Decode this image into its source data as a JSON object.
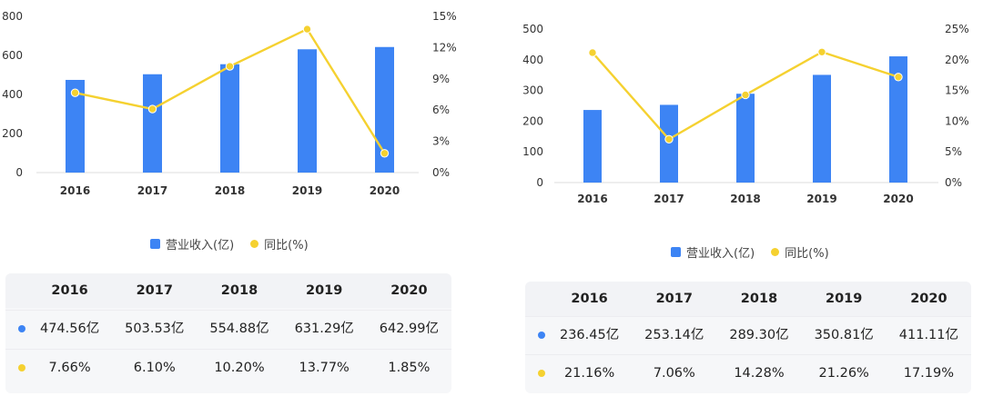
{
  "colors": {
    "bar": "#3d84f4",
    "line": "#f5d130",
    "grid": "#e6e6e6"
  },
  "charts": [
    {
      "legend": {
        "bar_label": "营业收入(亿)",
        "line_label": "同比(%)"
      },
      "table": {
        "years": [
          "2016",
          "2017",
          "2018",
          "2019",
          "2020"
        ],
        "revenue": [
          "474.56亿",
          "503.53亿",
          "554.88亿",
          "631.29亿",
          "642.99亿"
        ],
        "yoy": [
          "7.66%",
          "6.10%",
          "10.20%",
          "13.77%",
          "1.85%"
        ]
      }
    },
    {
      "legend": {
        "bar_label": "营业收入(亿)",
        "line_label": "同比(%)"
      },
      "table": {
        "years": [
          "2016",
          "2017",
          "2018",
          "2019",
          "2020"
        ],
        "revenue": [
          "236.45亿",
          "253.14亿",
          "289.30亿",
          "350.81亿",
          "411.11亿"
        ],
        "yoy": [
          "21.16%",
          "7.06%",
          "14.28%",
          "21.26%",
          "17.19%"
        ]
      }
    }
  ],
  "chart_data": [
    {
      "type": "bar",
      "categories": [
        "2016",
        "2017",
        "2018",
        "2019",
        "2020"
      ],
      "series": [
        {
          "name": "营业收入(亿)",
          "type": "bar",
          "axis": "left",
          "values": [
            474.56,
            503.53,
            554.88,
            631.29,
            642.99
          ]
        },
        {
          "name": "同比(%)",
          "type": "line",
          "axis": "right",
          "values": [
            7.66,
            6.1,
            10.2,
            13.77,
            1.85
          ]
        }
      ],
      "y_left": {
        "min": 0,
        "max": 800,
        "ticks": [
          "0",
          "200",
          "400",
          "600",
          "800"
        ]
      },
      "y_right": {
        "min": 0,
        "max": 15,
        "ticks": [
          "0%",
          "3%",
          "6%",
          "9%",
          "12%",
          "15%"
        ]
      },
      "grid": false,
      "legend_position": "bottom"
    },
    {
      "type": "bar",
      "categories": [
        "2016",
        "2017",
        "2018",
        "2019",
        "2020"
      ],
      "series": [
        {
          "name": "营业收入(亿)",
          "type": "bar",
          "axis": "left",
          "values": [
            236.45,
            253.14,
            289.3,
            350.81,
            411.11
          ]
        },
        {
          "name": "同比(%)",
          "type": "line",
          "axis": "right",
          "values": [
            21.16,
            7.06,
            14.28,
            21.26,
            17.19
          ]
        }
      ],
      "y_left": {
        "min": 0,
        "max": 500,
        "ticks": [
          "0",
          "100",
          "200",
          "300",
          "400",
          "500"
        ]
      },
      "y_right": {
        "min": 0,
        "max": 25,
        "ticks": [
          "0%",
          "5%",
          "10%",
          "15%",
          "20%",
          "25%"
        ]
      },
      "grid": false,
      "legend_position": "bottom"
    }
  ]
}
